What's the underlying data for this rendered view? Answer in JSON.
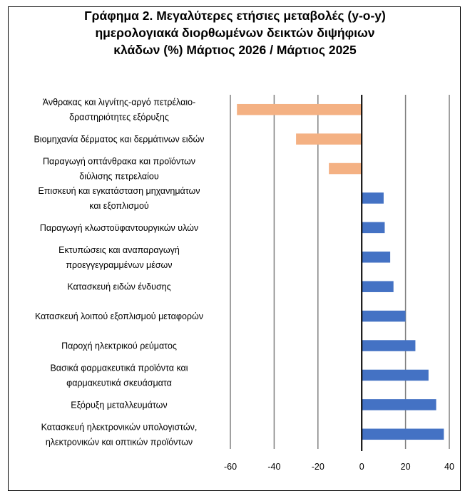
{
  "chart_data": {
    "type": "bar",
    "orientation": "horizontal",
    "title_lines": [
      "Γράφημα 2. Μεγαλύτερες ετήσιες μεταβολές (y-o-y)",
      "ημερολογιακά διορθωμένων δεικτών διψήφιων",
      "κλάδων (%) Μάρτιος 2026 / Μάρτιος  2025"
    ],
    "categories": [
      [
        "Άνθρακας και λιγνίτης-αργό πετρέλαιο-",
        "δραστηριότητες εξόρυξης"
      ],
      [
        "Βιομηχανία δέρματος και δερμάτινων ειδών"
      ],
      [
        "Παραγωγή οπτάνθρακα και προϊόντων",
        "διύλισης πετρελαίου"
      ],
      [
        "Επισκευή και εγκατάσταση μηχανημάτων",
        "και εξοπλισμού"
      ],
      [
        "Παραγωγή κλωστοϋφαντουργικών υλών"
      ],
      [
        "Εκτυπώσεις και αναπαραγωγή",
        "προεγγεγραμμένων μέσων"
      ],
      [
        "Κατασκευή ειδών ένδυσης"
      ],
      [
        "Κατασκευή λοιπού εξοπλισμού μεταφορών"
      ],
      [
        "Παροχή ηλεκτρικού ρεύματος"
      ],
      [
        "Βασικά φαρμακευτικά προϊόντα και",
        "φαρμακευτικά σκευάσματα"
      ],
      [
        "Εξόρυξη μεταλλευμάτων"
      ],
      [
        "Κατασκευή ηλεκτρονικών υπολογιστών,",
        "ηλεκτρονικών και οπτικών προϊόντων"
      ]
    ],
    "values": [
      -57,
      -30,
      -15,
      10,
      10.5,
      13,
      14.5,
      20,
      24.5,
      30.5,
      34,
      37.5
    ],
    "xlim": [
      -60,
      40
    ],
    "xticks": [
      -60,
      -40,
      -20,
      0,
      20,
      40
    ],
    "grid": "vertical",
    "colors": {
      "negative": "#F4B183",
      "positive": "#4472C4",
      "grid": "#808080",
      "zero_axis": "#000000"
    }
  }
}
